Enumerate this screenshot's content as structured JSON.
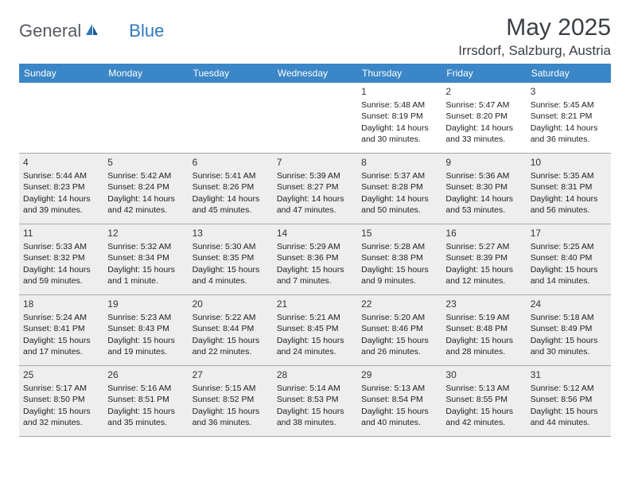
{
  "brand": {
    "general": "General",
    "blue": "Blue"
  },
  "title": "May 2025",
  "location": "Irrsdorf, Salzburg, Austria",
  "colors": {
    "header_bg": "#3b86c6",
    "header_text": "#ffffff",
    "shaded_bg": "#eeeeee",
    "text": "#222222",
    "brand_gray": "#555a5f",
    "brand_blue": "#2f78bd"
  },
  "day_names": [
    "Sunday",
    "Monday",
    "Tuesday",
    "Wednesday",
    "Thursday",
    "Friday",
    "Saturday"
  ],
  "weeks": [
    [
      {
        "day": "",
        "sunrise": "",
        "sunset": "",
        "daylight": "",
        "shaded": false
      },
      {
        "day": "",
        "sunrise": "",
        "sunset": "",
        "daylight": "",
        "shaded": false
      },
      {
        "day": "",
        "sunrise": "",
        "sunset": "",
        "daylight": "",
        "shaded": false
      },
      {
        "day": "",
        "sunrise": "",
        "sunset": "",
        "daylight": "",
        "shaded": false
      },
      {
        "day": "1",
        "sunrise": "Sunrise: 5:48 AM",
        "sunset": "Sunset: 8:19 PM",
        "daylight": "Daylight: 14 hours and 30 minutes.",
        "shaded": false
      },
      {
        "day": "2",
        "sunrise": "Sunrise: 5:47 AM",
        "sunset": "Sunset: 8:20 PM",
        "daylight": "Daylight: 14 hours and 33 minutes.",
        "shaded": false
      },
      {
        "day": "3",
        "sunrise": "Sunrise: 5:45 AM",
        "sunset": "Sunset: 8:21 PM",
        "daylight": "Daylight: 14 hours and 36 minutes.",
        "shaded": false
      }
    ],
    [
      {
        "day": "4",
        "sunrise": "Sunrise: 5:44 AM",
        "sunset": "Sunset: 8:23 PM",
        "daylight": "Daylight: 14 hours and 39 minutes.",
        "shaded": true
      },
      {
        "day": "5",
        "sunrise": "Sunrise: 5:42 AM",
        "sunset": "Sunset: 8:24 PM",
        "daylight": "Daylight: 14 hours and 42 minutes.",
        "shaded": true
      },
      {
        "day": "6",
        "sunrise": "Sunrise: 5:41 AM",
        "sunset": "Sunset: 8:26 PM",
        "daylight": "Daylight: 14 hours and 45 minutes.",
        "shaded": true
      },
      {
        "day": "7",
        "sunrise": "Sunrise: 5:39 AM",
        "sunset": "Sunset: 8:27 PM",
        "daylight": "Daylight: 14 hours and 47 minutes.",
        "shaded": true
      },
      {
        "day": "8",
        "sunrise": "Sunrise: 5:37 AM",
        "sunset": "Sunset: 8:28 PM",
        "daylight": "Daylight: 14 hours and 50 minutes.",
        "shaded": true
      },
      {
        "day": "9",
        "sunrise": "Sunrise: 5:36 AM",
        "sunset": "Sunset: 8:30 PM",
        "daylight": "Daylight: 14 hours and 53 minutes.",
        "shaded": true
      },
      {
        "day": "10",
        "sunrise": "Sunrise: 5:35 AM",
        "sunset": "Sunset: 8:31 PM",
        "daylight": "Daylight: 14 hours and 56 minutes.",
        "shaded": true
      }
    ],
    [
      {
        "day": "11",
        "sunrise": "Sunrise: 5:33 AM",
        "sunset": "Sunset: 8:32 PM",
        "daylight": "Daylight: 14 hours and 59 minutes.",
        "shaded": true
      },
      {
        "day": "12",
        "sunrise": "Sunrise: 5:32 AM",
        "sunset": "Sunset: 8:34 PM",
        "daylight": "Daylight: 15 hours and 1 minute.",
        "shaded": true
      },
      {
        "day": "13",
        "sunrise": "Sunrise: 5:30 AM",
        "sunset": "Sunset: 8:35 PM",
        "daylight": "Daylight: 15 hours and 4 minutes.",
        "shaded": true
      },
      {
        "day": "14",
        "sunrise": "Sunrise: 5:29 AM",
        "sunset": "Sunset: 8:36 PM",
        "daylight": "Daylight: 15 hours and 7 minutes.",
        "shaded": true
      },
      {
        "day": "15",
        "sunrise": "Sunrise: 5:28 AM",
        "sunset": "Sunset: 8:38 PM",
        "daylight": "Daylight: 15 hours and 9 minutes.",
        "shaded": true
      },
      {
        "day": "16",
        "sunrise": "Sunrise: 5:27 AM",
        "sunset": "Sunset: 8:39 PM",
        "daylight": "Daylight: 15 hours and 12 minutes.",
        "shaded": true
      },
      {
        "day": "17",
        "sunrise": "Sunrise: 5:25 AM",
        "sunset": "Sunset: 8:40 PM",
        "daylight": "Daylight: 15 hours and 14 minutes.",
        "shaded": true
      }
    ],
    [
      {
        "day": "18",
        "sunrise": "Sunrise: 5:24 AM",
        "sunset": "Sunset: 8:41 PM",
        "daylight": "Daylight: 15 hours and 17 minutes.",
        "shaded": true
      },
      {
        "day": "19",
        "sunrise": "Sunrise: 5:23 AM",
        "sunset": "Sunset: 8:43 PM",
        "daylight": "Daylight: 15 hours and 19 minutes.",
        "shaded": true
      },
      {
        "day": "20",
        "sunrise": "Sunrise: 5:22 AM",
        "sunset": "Sunset: 8:44 PM",
        "daylight": "Daylight: 15 hours and 22 minutes.",
        "shaded": true
      },
      {
        "day": "21",
        "sunrise": "Sunrise: 5:21 AM",
        "sunset": "Sunset: 8:45 PM",
        "daylight": "Daylight: 15 hours and 24 minutes.",
        "shaded": true
      },
      {
        "day": "22",
        "sunrise": "Sunrise: 5:20 AM",
        "sunset": "Sunset: 8:46 PM",
        "daylight": "Daylight: 15 hours and 26 minutes.",
        "shaded": true
      },
      {
        "day": "23",
        "sunrise": "Sunrise: 5:19 AM",
        "sunset": "Sunset: 8:48 PM",
        "daylight": "Daylight: 15 hours and 28 minutes.",
        "shaded": true
      },
      {
        "day": "24",
        "sunrise": "Sunrise: 5:18 AM",
        "sunset": "Sunset: 8:49 PM",
        "daylight": "Daylight: 15 hours and 30 minutes.",
        "shaded": true
      }
    ],
    [
      {
        "day": "25",
        "sunrise": "Sunrise: 5:17 AM",
        "sunset": "Sunset: 8:50 PM",
        "daylight": "Daylight: 15 hours and 32 minutes.",
        "shaded": true
      },
      {
        "day": "26",
        "sunrise": "Sunrise: 5:16 AM",
        "sunset": "Sunset: 8:51 PM",
        "daylight": "Daylight: 15 hours and 35 minutes.",
        "shaded": true
      },
      {
        "day": "27",
        "sunrise": "Sunrise: 5:15 AM",
        "sunset": "Sunset: 8:52 PM",
        "daylight": "Daylight: 15 hours and 36 minutes.",
        "shaded": true
      },
      {
        "day": "28",
        "sunrise": "Sunrise: 5:14 AM",
        "sunset": "Sunset: 8:53 PM",
        "daylight": "Daylight: 15 hours and 38 minutes.",
        "shaded": true
      },
      {
        "day": "29",
        "sunrise": "Sunrise: 5:13 AM",
        "sunset": "Sunset: 8:54 PM",
        "daylight": "Daylight: 15 hours and 40 minutes.",
        "shaded": true
      },
      {
        "day": "30",
        "sunrise": "Sunrise: 5:13 AM",
        "sunset": "Sunset: 8:55 PM",
        "daylight": "Daylight: 15 hours and 42 minutes.",
        "shaded": true
      },
      {
        "day": "31",
        "sunrise": "Sunrise: 5:12 AM",
        "sunset": "Sunset: 8:56 PM",
        "daylight": "Daylight: 15 hours and 44 minutes.",
        "shaded": true
      }
    ]
  ]
}
